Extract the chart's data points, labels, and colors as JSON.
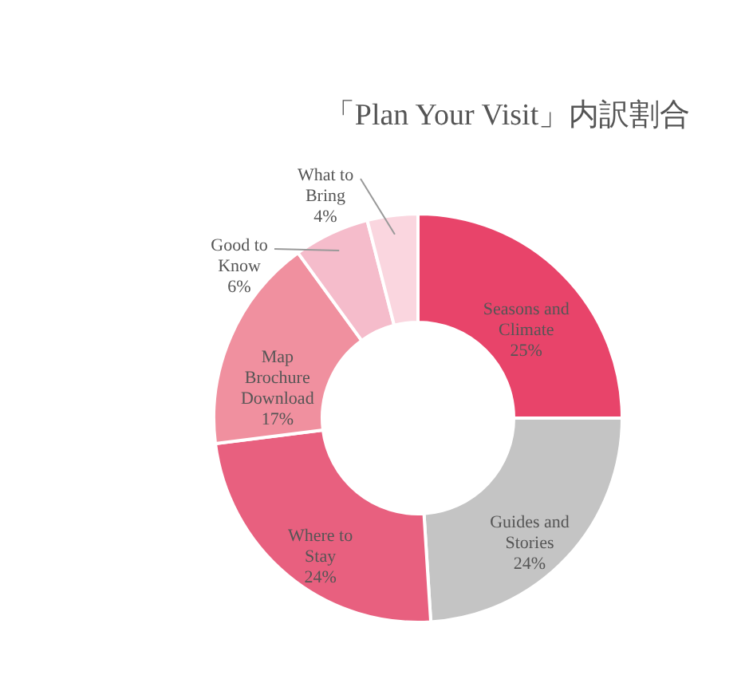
{
  "chart_data": {
    "type": "donut",
    "title": "「Plan Your Visit」内訳割合",
    "categories": [
      "Seasons and Climate",
      "Guides and Stories",
      "Where to Stay",
      "Map Brochure Download",
      "Good to Know",
      "What to Bring"
    ],
    "values": [
      25,
      24,
      24,
      17,
      6,
      4
    ],
    "value_labels": [
      "25%",
      "24%",
      "24%",
      "17%",
      "6%",
      "4%"
    ],
    "colors": [
      "#e8446a",
      "#c4c4c4",
      "#e8607f",
      "#f0909f",
      "#f5bccb",
      "#fad6df"
    ]
  }
}
